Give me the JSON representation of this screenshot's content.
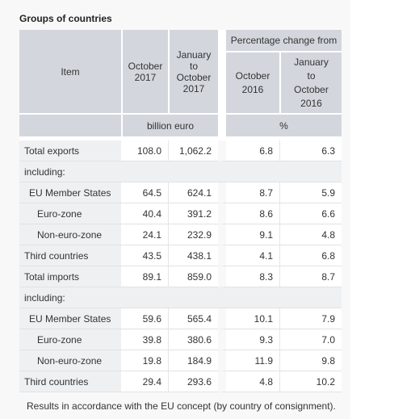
{
  "title": "Groups of countries",
  "headers": {
    "item": "Item",
    "oct2017": [
      "October",
      "2017"
    ],
    "janoct2017": [
      "January",
      "to",
      "October",
      "2017"
    ],
    "pct_group": "Percentage change from",
    "oct2016": [
      "October",
      "2016"
    ],
    "janoct2016": [
      "January",
      "to",
      "October",
      "2016"
    ],
    "unit_abs": "billion euro",
    "unit_pct": "%"
  },
  "rows": [
    {
      "label": "Total exports",
      "level": 0,
      "values": [
        "108.0",
        "1,062.2",
        "6.8",
        "6.3"
      ]
    },
    {
      "label": "including:",
      "level": 0,
      "values": null
    },
    {
      "label": "EU Member States",
      "level": 1,
      "values": [
        "64.5",
        "624.1",
        "8.7",
        "5.9"
      ]
    },
    {
      "label": "Euro-zone",
      "level": 2,
      "values": [
        "40.4",
        "391.2",
        "8.6",
        "6.6"
      ]
    },
    {
      "label": "Non-euro-zone",
      "level": 2,
      "values": [
        "24.1",
        "232.9",
        "9.1",
        "4.8"
      ]
    },
    {
      "label": "Third countries",
      "level": 0,
      "values": [
        "43.5",
        "438.1",
        "4.1",
        "6.8"
      ]
    },
    {
      "label": "Total imports",
      "level": 0,
      "values": [
        "89.1",
        "859.0",
        "8.3",
        "8.7"
      ]
    },
    {
      "label": "including:",
      "level": 0,
      "values": null
    },
    {
      "label": "EU Member States",
      "level": 1,
      "values": [
        "59.6",
        "565.4",
        "10.1",
        "7.9"
      ]
    },
    {
      "label": "Euro-zone",
      "level": 2,
      "values": [
        "39.8",
        "380.6",
        "9.3",
        "7.0"
      ]
    },
    {
      "label": "Non-euro-zone",
      "level": 2,
      "values": [
        "19.8",
        "184.9",
        "11.9",
        "9.8"
      ]
    },
    {
      "label": "Third countries",
      "level": 0,
      "values": [
        "29.4",
        "293.6",
        "4.8",
        "10.2"
      ]
    }
  ],
  "note": "Results in accordance with the EU concept (by country of consignment)."
}
